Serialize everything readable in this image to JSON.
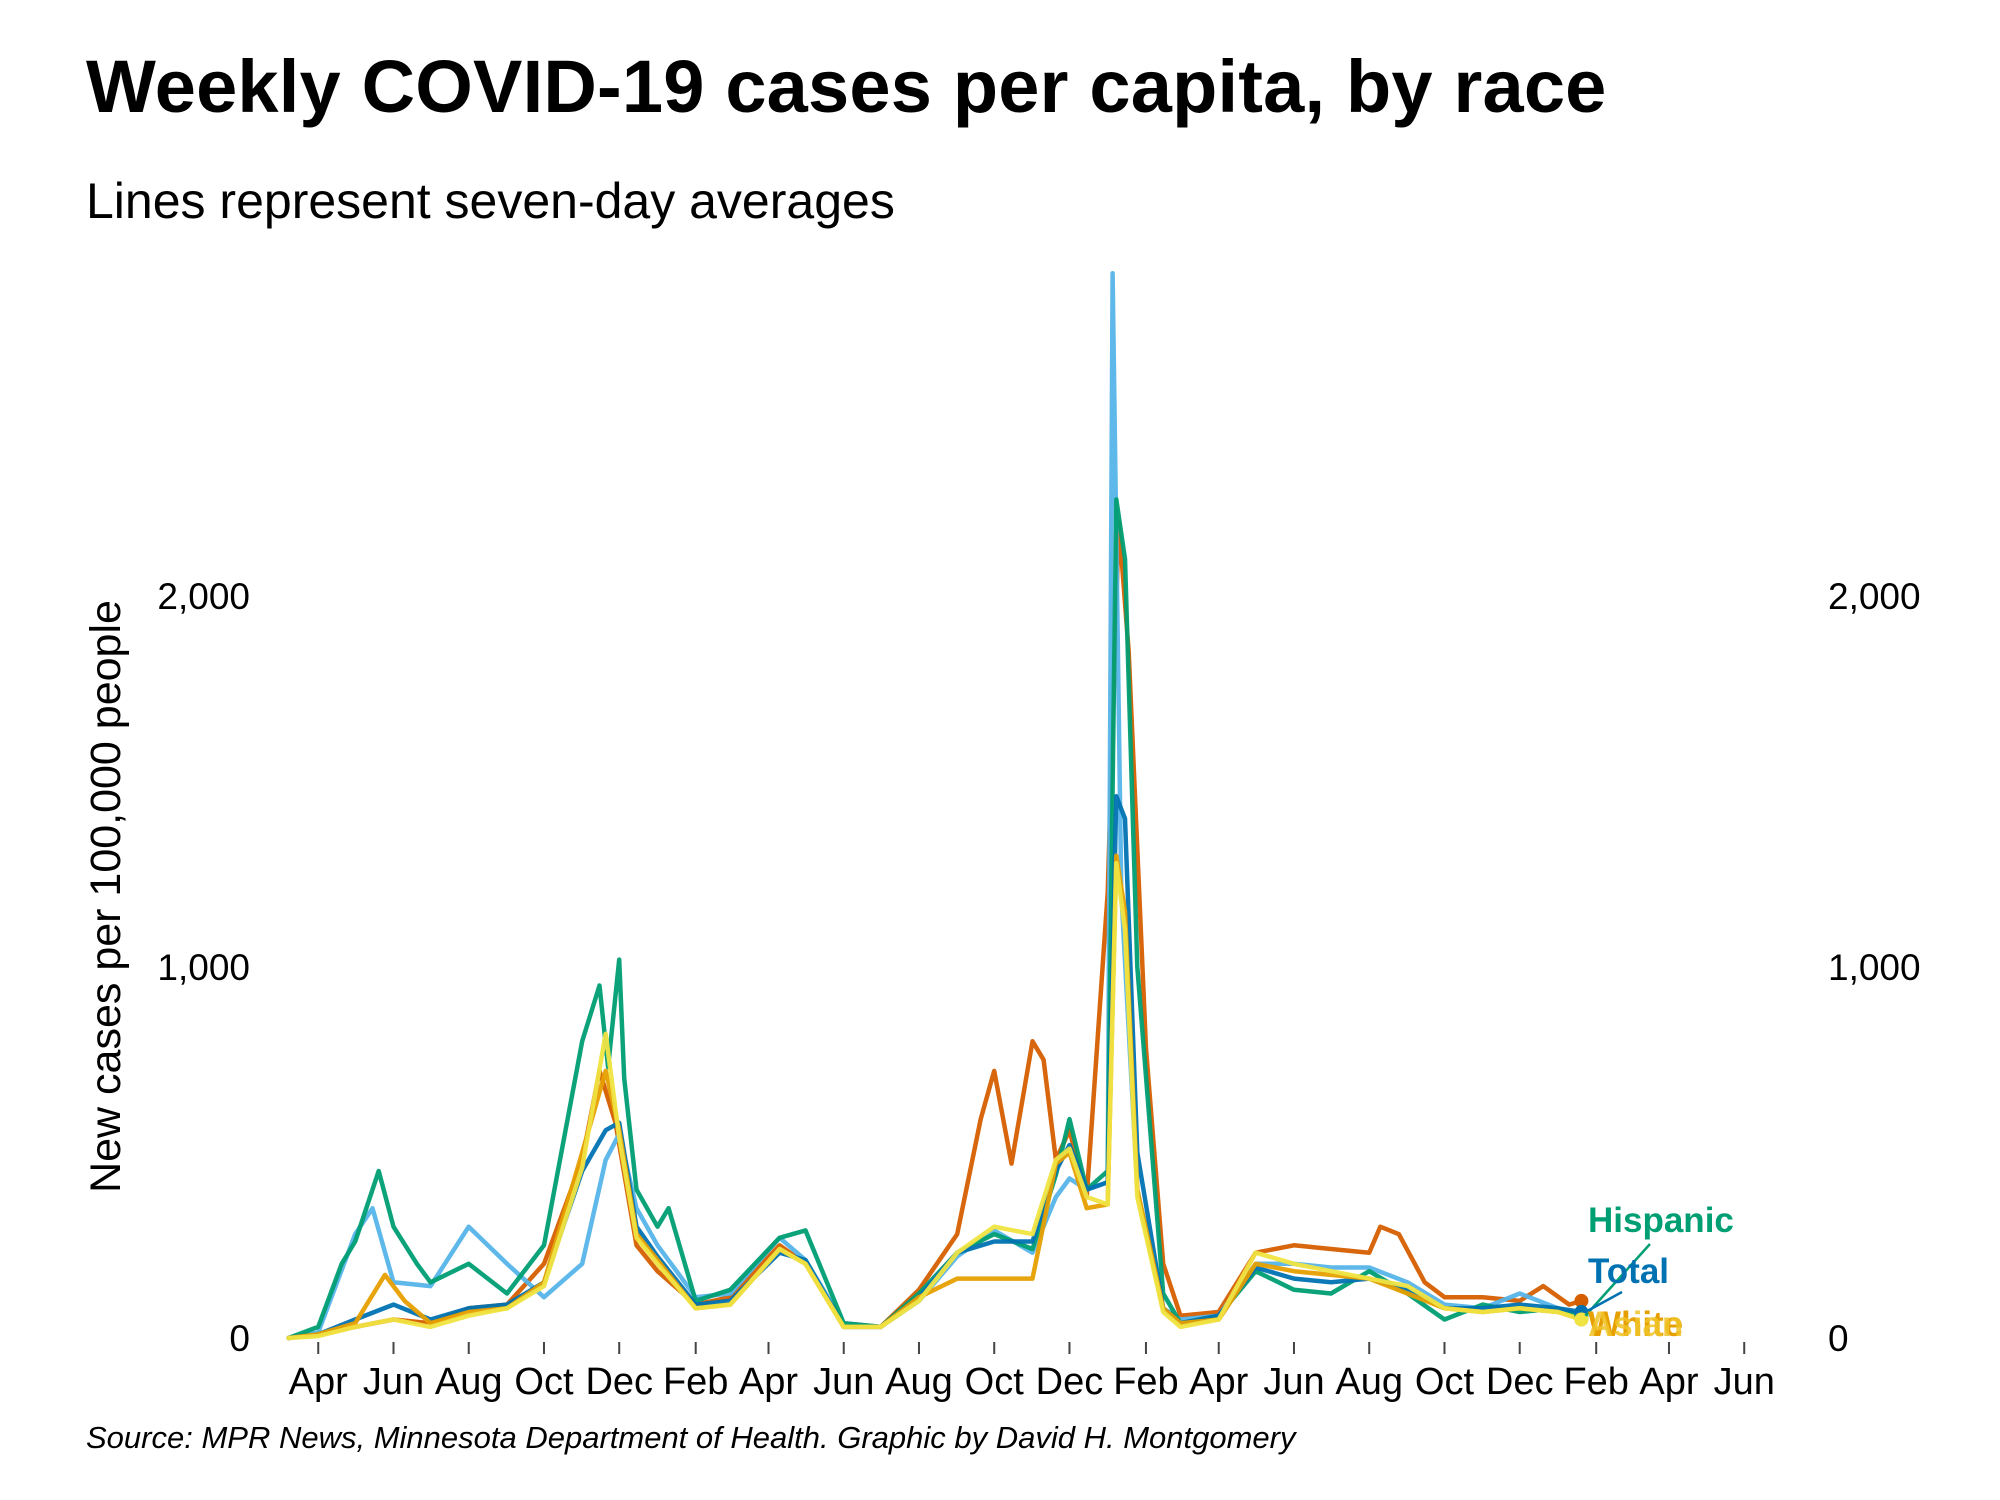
{
  "title": "Weekly COVID-19 cases per capita, by race",
  "subtitle": "Lines represent seven-day averages",
  "source": "Source: MPR News, Minnesota Department of Health. Graphic by David H. Montgomery",
  "chart_data": {
    "type": "line",
    "title": "Weekly COVID-19 cases per capita, by race",
    "subtitle": "Lines represent seven-day averages",
    "xlabel": "",
    "ylabel": "New cases per 100,000 people",
    "xlim": [
      "2020-03-01",
      "2023-06-30"
    ],
    "ylim": [
      0,
      2900
    ],
    "grid": false,
    "y_axis_both_sides": true,
    "x_ticks": [
      {
        "label": "Apr",
        "date": "2020-04-01"
      },
      {
        "label": "Jun",
        "date": "2020-06-01"
      },
      {
        "label": "Aug",
        "date": "2020-08-01"
      },
      {
        "label": "Oct",
        "date": "2020-10-01"
      },
      {
        "label": "Dec",
        "date": "2020-12-01"
      },
      {
        "label": "Feb",
        "date": "2021-02-01"
      },
      {
        "label": "Apr",
        "date": "2021-04-01"
      },
      {
        "label": "Jun",
        "date": "2021-06-01"
      },
      {
        "label": "Aug",
        "date": "2021-08-01"
      },
      {
        "label": "Oct",
        "date": "2021-10-01"
      },
      {
        "label": "Dec",
        "date": "2021-12-01"
      },
      {
        "label": "Feb",
        "date": "2022-02-01"
      },
      {
        "label": "Apr",
        "date": "2022-04-01"
      },
      {
        "label": "Jun",
        "date": "2022-06-01"
      },
      {
        "label": "Aug",
        "date": "2022-08-01"
      },
      {
        "label": "Oct",
        "date": "2022-10-01"
      },
      {
        "label": "Dec",
        "date": "2022-12-01"
      },
      {
        "label": "Feb",
        "date": "2023-02-01"
      },
      {
        "label": "Apr",
        "date": "2023-04-01"
      },
      {
        "label": "Jun",
        "date": "2023-06-01"
      }
    ],
    "y_ticks": [
      {
        "label": "0",
        "value": 0
      },
      {
        "label": "1,000",
        "value": 1000
      },
      {
        "label": "2,000",
        "value": 2000
      }
    ],
    "series": [
      {
        "name": "",
        "color": "#D55E00",
        "x": [
          "2020-03-08",
          "2020-04-01",
          "2020-05-01",
          "2020-06-01",
          "2020-07-01",
          "2020-08-01",
          "2020-09-01",
          "2020-10-01",
          "2020-11-01",
          "2020-11-15",
          "2020-11-28",
          "2020-12-15",
          "2021-01-01",
          "2021-02-01",
          "2021-03-01",
          "2021-04-10",
          "2021-05-01",
          "2021-06-01",
          "2021-07-01",
          "2021-08-01",
          "2021-09-01",
          "2021-09-20",
          "2021-10-01",
          "2021-10-15",
          "2021-11-01",
          "2021-11-10",
          "2021-11-20",
          "2021-12-01",
          "2021-12-15",
          "2022-01-01",
          "2022-01-10",
          "2022-01-18",
          "2022-02-01",
          "2022-02-15",
          "2022-03-01",
          "2022-04-01",
          "2022-05-01",
          "2022-06-01",
          "2022-07-01",
          "2022-08-01",
          "2022-08-10",
          "2022-08-25",
          "2022-09-15",
          "2022-10-01",
          "2022-11-01",
          "2022-12-01",
          "2022-12-20",
          "2023-01-10",
          "2023-01-20"
        ],
        "values": [
          0,
          10,
          30,
          50,
          40,
          80,
          90,
          200,
          480,
          720,
          580,
          250,
          180,
          90,
          110,
          250,
          200,
          40,
          30,
          130,
          280,
          590,
          720,
          470,
          800,
          750,
          480,
          560,
          380,
          1200,
          2200,
          1850,
          780,
          200,
          60,
          70,
          230,
          250,
          240,
          230,
          300,
          280,
          150,
          110,
          110,
          100,
          140,
          90,
          100
        ]
      },
      {
        "name": "Asian",
        "color": "#56B4E9",
        "x": [
          "2020-03-08",
          "2020-04-01",
          "2020-05-01",
          "2020-05-15",
          "2020-06-01",
          "2020-07-01",
          "2020-08-01",
          "2020-09-01",
          "2020-10-01",
          "2020-11-01",
          "2020-11-20",
          "2020-12-01",
          "2020-12-15",
          "2021-01-01",
          "2021-02-01",
          "2021-03-01",
          "2021-04-10",
          "2021-05-01",
          "2021-06-01",
          "2021-07-01",
          "2021-08-01",
          "2021-09-01",
          "2021-10-01",
          "2021-11-01",
          "2021-11-20",
          "2021-12-01",
          "2021-12-15",
          "2022-01-01",
          "2022-01-05",
          "2022-01-12",
          "2022-01-25",
          "2022-02-15",
          "2022-03-01",
          "2022-04-01",
          "2022-05-01",
          "2022-06-01",
          "2022-07-01",
          "2022-08-01",
          "2022-09-01",
          "2022-10-01",
          "2022-11-01",
          "2022-12-01",
          "2023-01-01",
          "2023-01-20"
        ],
        "values": [
          0,
          15,
          280,
          350,
          150,
          140,
          300,
          200,
          110,
          200,
          480,
          550,
          350,
          250,
          110,
          120,
          270,
          210,
          40,
          30,
          100,
          220,
          290,
          230,
          380,
          430,
          400,
          420,
          2870,
          1200,
          400,
          80,
          50,
          60,
          200,
          200,
          190,
          190,
          150,
          90,
          80,
          120,
          80,
          60
        ]
      },
      {
        "name": "Hispanic",
        "color": "#009E73",
        "x": [
          "2020-03-08",
          "2020-04-01",
          "2020-04-20",
          "2020-05-01",
          "2020-05-20",
          "2020-06-01",
          "2020-06-20",
          "2020-07-01",
          "2020-08-01",
          "2020-09-01",
          "2020-10-01",
          "2020-11-01",
          "2020-11-15",
          "2020-11-22",
          "2020-12-01",
          "2020-12-05",
          "2020-12-15",
          "2021-01-01",
          "2021-01-10",
          "2021-02-01",
          "2021-03-01",
          "2021-04-10",
          "2021-05-01",
          "2021-06-01",
          "2021-07-01",
          "2021-08-01",
          "2021-09-01",
          "2021-10-01",
          "2021-11-01",
          "2021-11-20",
          "2021-12-01",
          "2021-12-15",
          "2022-01-01",
          "2022-01-08",
          "2022-01-15",
          "2022-01-25",
          "2022-02-15",
          "2022-03-01",
          "2022-04-01",
          "2022-05-01",
          "2022-06-01",
          "2022-07-01",
          "2022-08-01",
          "2022-09-01",
          "2022-10-01",
          "2022-11-01",
          "2022-12-01",
          "2023-01-01",
          "2023-01-20"
        ],
        "values": [
          0,
          30,
          200,
          260,
          450,
          300,
          200,
          150,
          200,
          120,
          250,
          800,
          950,
          730,
          1020,
          700,
          400,
          300,
          350,
          100,
          130,
          270,
          290,
          40,
          30,
          120,
          230,
          280,
          240,
          440,
          590,
          400,
          450,
          2260,
          2100,
          1000,
          120,
          40,
          60,
          180,
          130,
          120,
          180,
          120,
          50,
          90,
          70,
          80,
          60
        ]
      },
      {
        "name": "Total",
        "color": "#0072B2",
        "x": [
          "2020-03-08",
          "2020-04-01",
          "2020-05-01",
          "2020-06-01",
          "2020-07-01",
          "2020-08-01",
          "2020-09-01",
          "2020-10-01",
          "2020-11-01",
          "2020-11-20",
          "2020-12-01",
          "2020-12-15",
          "2021-01-01",
          "2021-02-01",
          "2021-03-01",
          "2021-04-10",
          "2021-05-01",
          "2021-06-01",
          "2021-07-01",
          "2021-08-01",
          "2021-09-01",
          "2021-10-01",
          "2021-11-01",
          "2021-11-20",
          "2021-12-01",
          "2021-12-15",
          "2022-01-01",
          "2022-01-08",
          "2022-01-15",
          "2022-01-25",
          "2022-02-15",
          "2022-03-01",
          "2022-04-01",
          "2022-05-01",
          "2022-06-01",
          "2022-07-01",
          "2022-08-01",
          "2022-09-01",
          "2022-10-01",
          "2022-11-01",
          "2022-12-01",
          "2023-01-01",
          "2023-01-20"
        ],
        "values": [
          0,
          10,
          50,
          90,
          50,
          80,
          90,
          150,
          450,
          560,
          580,
          300,
          220,
          90,
          100,
          230,
          210,
          30,
          30,
          110,
          230,
          260,
          260,
          450,
          520,
          400,
          420,
          1460,
          1400,
          500,
          80,
          40,
          60,
          190,
          160,
          150,
          160,
          130,
          80,
          80,
          90,
          80,
          70
        ]
      },
      {
        "name": "White",
        "color": "#E69F00",
        "x": [
          "2020-03-08",
          "2020-04-01",
          "2020-05-01",
          "2020-05-25",
          "2020-06-10",
          "2020-07-01",
          "2020-08-01",
          "2020-09-01",
          "2020-10-01",
          "2020-11-01",
          "2020-11-20",
          "2020-12-01",
          "2020-12-15",
          "2021-01-01",
          "2021-02-01",
          "2021-03-01",
          "2021-04-10",
          "2021-05-01",
          "2021-06-01",
          "2021-07-01",
          "2021-08-01",
          "2021-09-01",
          "2021-10-01",
          "2021-11-01",
          "2021-11-20",
          "2021-12-01",
          "2021-12-15",
          "2022-01-01",
          "2022-01-08",
          "2022-01-15",
          "2022-01-25",
          "2022-02-15",
          "2022-03-01",
          "2022-04-01",
          "2022-05-01",
          "2022-06-01",
          "2022-07-01",
          "2022-08-01",
          "2022-09-01",
          "2022-10-01",
          "2022-11-01",
          "2022-12-01",
          "2023-01-01",
          "2023-01-20"
        ],
        "values": [
          0,
          10,
          40,
          170,
          100,
          40,
          70,
          80,
          150,
          500,
          720,
          560,
          280,
          210,
          80,
          90,
          240,
          200,
          30,
          30,
          110,
          160,
          160,
          160,
          470,
          500,
          350,
          360,
          1300,
          1150,
          400,
          80,
          40,
          50,
          200,
          180,
          170,
          160,
          120,
          80,
          70,
          80,
          70,
          50
        ]
      },
      {
        "name": "",
        "color": "#F0E442",
        "x": [
          "2020-03-08",
          "2020-04-01",
          "2020-05-01",
          "2020-06-01",
          "2020-07-01",
          "2020-08-01",
          "2020-09-01",
          "2020-10-01",
          "2020-11-01",
          "2020-11-20",
          "2020-12-01",
          "2020-12-15",
          "2021-01-01",
          "2021-02-01",
          "2021-03-01",
          "2021-04-10",
          "2021-05-01",
          "2021-06-01",
          "2021-07-01",
          "2021-08-01",
          "2021-09-01",
          "2021-10-01",
          "2021-11-01",
          "2021-11-20",
          "2021-12-01",
          "2021-12-15",
          "2022-01-01",
          "2022-01-08",
          "2022-01-15",
          "2022-01-25",
          "2022-02-15",
          "2022-03-01",
          "2022-04-01",
          "2022-05-01",
          "2022-06-01",
          "2022-07-01",
          "2022-08-01",
          "2022-09-01",
          "2022-10-01",
          "2022-11-01",
          "2022-12-01",
          "2023-01-01",
          "2023-01-20"
        ],
        "values": [
          0,
          5,
          30,
          50,
          30,
          60,
          80,
          140,
          460,
          820,
          540,
          270,
          200,
          80,
          90,
          240,
          200,
          30,
          30,
          100,
          230,
          300,
          280,
          480,
          510,
          380,
          360,
          1280,
          1100,
          380,
          70,
          30,
          50,
          230,
          200,
          180,
          160,
          140,
          80,
          70,
          80,
          70,
          50
        ]
      }
    ],
    "annotations": [
      {
        "text": "Hispanic",
        "color": "#009E73"
      },
      {
        "text": "Total",
        "color": "#0072B2"
      },
      {
        "text": "White",
        "color": "#E69F00"
      },
      {
        "text": "Asian",
        "color": "#F0C428"
      }
    ]
  }
}
